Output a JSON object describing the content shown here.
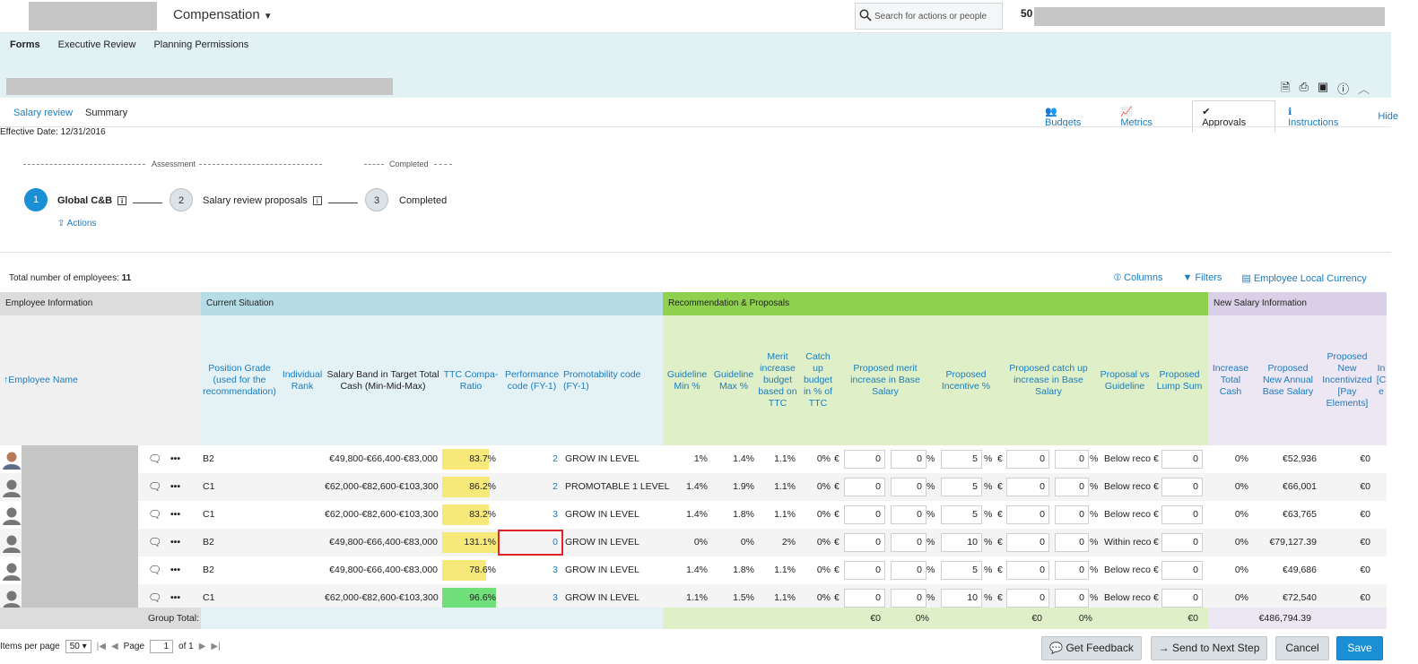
{
  "app": {
    "module": "Compensation",
    "search_placeholder": "Search for actions or people",
    "user_badge": "50"
  },
  "nav_tabs": [
    "Forms",
    "Executive Review",
    "Planning Permissions"
  ],
  "sub_tabs": [
    "Salary review",
    "Summary"
  ],
  "right_links": {
    "budgets": "Budgets",
    "metrics": "Metrics",
    "approvals": "Approvals",
    "instructions": "Instructions",
    "hide": "Hide"
  },
  "effective_date": "Effective Date: 12/31/2016",
  "workflow": {
    "phase_assessment": "Assessment",
    "phase_completed": "Completed",
    "steps": [
      {
        "num": "1",
        "label": "Global C&B"
      },
      {
        "num": "2",
        "label": "Salary review proposals"
      },
      {
        "num": "3",
        "label": "Completed"
      }
    ],
    "actions": "Actions"
  },
  "grid": {
    "total_label": "Total number of employees:",
    "total_value": "11",
    "tools": {
      "columns": "Columns",
      "filters": "Filters",
      "currency": "Employee Local Currency"
    },
    "groups": {
      "employee": "Employee Information",
      "current": "Current Situation",
      "recommendation": "Recommendation & Proposals",
      "new_salary": "New Salary Information"
    },
    "headers": {
      "employee_name": "Employee Name",
      "position_grade": "Position Grade (used for the recommendation)",
      "individual_rank": "Individual Rank",
      "salary_band": "Salary Band in Target Total Cash (Min-Mid-Max)",
      "ttc_compa": "TTC Compa-Ratio",
      "perf_code": "Performance code (FY-1)",
      "promo_code": "Promotability code (FY-1)",
      "guide_min": "Guideline Min %",
      "guide_max": "Guideline Max %",
      "merit_budget": "Merit increase budget based on TTC",
      "catchup_budget": "Catch up budget in % of TTC",
      "prop_merit": "Proposed merit increase in Base Salary",
      "prop_incentive": "Proposed Incentive %",
      "prop_catchup": "Proposed catch up increase in Base Salary",
      "prop_vs_guide": "Proposal vs Guideline",
      "prop_lump": "Proposed Lump Sum",
      "inc_total_cash": "Increase Total Cash",
      "new_annual_base": "Proposed New Annual Base Salary",
      "new_incentivized": "Proposed New Incentivized [Pay Elements]",
      "partial": "In [C e"
    },
    "rows": [
      {
        "grade": "B2",
        "band": "€49,800-€66,400-€83,000",
        "compa": "83.7%",
        "compa_pct": 83.7,
        "compa_color": "#f7e87a",
        "perf": "2",
        "promo": "GROW IN LEVEL",
        "gmin": "1%",
        "gmax": "1.4%",
        "merit": "1.1%",
        "catchup": "0%",
        "cur1": "€",
        "merit_amt": "0",
        "merit_pct": "0",
        "pct1": "%",
        "incent": "5",
        "pct2": "%",
        "cur2": "€",
        "catch_amt": "0",
        "catch_pct": "0",
        "pct3": "%",
        "vs": "Below reco",
        "cur3": "€",
        "lump": "0",
        "inc_tc": "0%",
        "new_base": "€52,936",
        "new_inc": "€0"
      },
      {
        "grade": "C1",
        "band": "€62,000-€82,600-€103,300",
        "compa": "86.2%",
        "compa_pct": 86.2,
        "compa_color": "#f7e87a",
        "perf": "2",
        "promo": "PROMOTABLE 1 LEVEL",
        "gmin": "1.4%",
        "gmax": "1.9%",
        "merit": "1.1%",
        "catchup": "0%",
        "cur1": "€",
        "merit_amt": "0",
        "merit_pct": "0",
        "pct1": "%",
        "incent": "5",
        "pct2": "%",
        "cur2": "€",
        "catch_amt": "0",
        "catch_pct": "0",
        "pct3": "%",
        "vs": "Below reco",
        "cur3": "€",
        "lump": "0",
        "inc_tc": "0%",
        "new_base": "€66,001",
        "new_inc": "€0"
      },
      {
        "grade": "C1",
        "band": "€62,000-€82,600-€103,300",
        "compa": "83.2%",
        "compa_pct": 83.2,
        "compa_color": "#f7e87a",
        "perf": "3",
        "promo": "GROW IN LEVEL",
        "gmin": "1.4%",
        "gmax": "1.8%",
        "merit": "1.1%",
        "catchup": "0%",
        "cur1": "€",
        "merit_amt": "0",
        "merit_pct": "0",
        "pct1": "%",
        "incent": "5",
        "pct2": "%",
        "cur2": "€",
        "catch_amt": "0",
        "catch_pct": "0",
        "pct3": "%",
        "vs": "Below reco",
        "cur3": "€",
        "lump": "0",
        "inc_tc": "0%",
        "new_base": "€63,765",
        "new_inc": "€0"
      },
      {
        "grade": "B2",
        "band": "€49,800-€66,400-€83,000",
        "compa": "131.1%",
        "compa_pct": 100,
        "compa_color": "#f7e87a",
        "perf": "0",
        "promo": "GROW IN LEVEL",
        "gmin": "0%",
        "gmax": "0%",
        "merit": "2%",
        "catchup": "0%",
        "cur1": "€",
        "merit_amt": "0",
        "merit_pct": "0",
        "pct1": "%",
        "incent": "10",
        "pct2": "%",
        "cur2": "€",
        "catch_amt": "0",
        "catch_pct": "0",
        "pct3": "%",
        "vs": "Within reco",
        "cur3": "€",
        "lump": "0",
        "inc_tc": "0%",
        "new_base": "€79,127.39",
        "new_inc": "€0"
      },
      {
        "grade": "B2",
        "band": "€49,800-€66,400-€83,000",
        "compa": "78.6%",
        "compa_pct": 78.6,
        "compa_color": "#f7e87a",
        "perf": "3",
        "promo": "GROW IN LEVEL",
        "gmin": "1.4%",
        "gmax": "1.8%",
        "merit": "1.1%",
        "catchup": "0%",
        "cur1": "€",
        "merit_amt": "0",
        "merit_pct": "0",
        "pct1": "%",
        "incent": "5",
        "pct2": "%",
        "cur2": "€",
        "catch_amt": "0",
        "catch_pct": "0",
        "pct3": "%",
        "vs": "Below reco",
        "cur3": "€",
        "lump": "0",
        "inc_tc": "0%",
        "new_base": "€49,686",
        "new_inc": "€0"
      },
      {
        "grade": "C1",
        "band": "€62,000-€82,600-€103,300",
        "compa": "96.6%",
        "compa_pct": 96.6,
        "compa_color": "#6fe07a",
        "perf": "3",
        "promo": "GROW IN LEVEL",
        "gmin": "1.1%",
        "gmax": "1.5%",
        "merit": "1.1%",
        "catchup": "0%",
        "cur1": "€",
        "merit_amt": "0",
        "merit_pct": "0",
        "pct1": "%",
        "incent": "10",
        "pct2": "%",
        "cur2": "€",
        "catch_amt": "0",
        "catch_pct": "0",
        "pct3": "%",
        "vs": "Below reco",
        "cur3": "€",
        "lump": "0",
        "inc_tc": "0%",
        "new_base": "€72,540",
        "new_inc": "€0"
      }
    ],
    "group_total": {
      "label": "Group Total:",
      "merit": "€0",
      "merit_pct": "0%",
      "catch": "€0",
      "catch_pct": "0%",
      "lump": "€0",
      "new_base": "€486,794.39"
    }
  },
  "pager": {
    "items_label": "Items per page",
    "items_value": "50",
    "page_label": "Page",
    "page_value": "1",
    "of_label": "of 1"
  },
  "buttons": {
    "feedback": "Get Feedback",
    "next": "Send to Next Step",
    "cancel": "Cancel",
    "save": "Save"
  },
  "colors": {
    "band": "#e2f1f4",
    "current_group": "#b6dde6",
    "reco_group": "#8fd14f",
    "reco_light": "#dff0c9",
    "new_group": "#d9cfe6",
    "new_light": "#ede6f3",
    "accent": "#1a8fd6"
  }
}
